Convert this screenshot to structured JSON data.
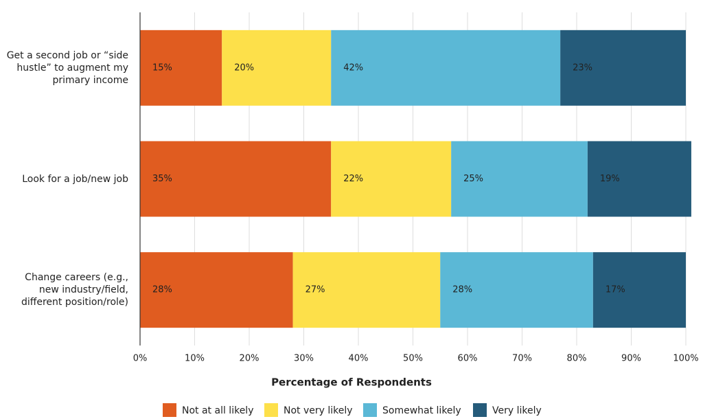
{
  "chart_data": {
    "type": "stacked-bar-horizontal",
    "categories": [
      "Get a second job or “side hustle” to augment my primary income",
      "Look for a job/new job",
      "Change careers (e.g., new industry/field, different position/role)"
    ],
    "series": [
      {
        "name": "Not at all likely",
        "color": "#e05c20",
        "values": [
          15,
          35,
          28
        ],
        "value_labels": [
          "15%",
          "35%",
          "28%"
        ]
      },
      {
        "name": "Not very likely",
        "color": "#fde04a",
        "values": [
          20,
          22,
          27
        ],
        "value_labels": [
          "20%",
          "22%",
          "27%"
        ]
      },
      {
        "name": "Somewhat likely",
        "color": "#5bb8d6",
        "values": [
          42,
          25,
          28
        ],
        "value_labels": [
          "42%",
          "25%",
          "28%"
        ]
      },
      {
        "name": "Very likely",
        "color": "#255b7a",
        "values": [
          23,
          19,
          17
        ],
        "value_labels": [
          "23%",
          "19%",
          "17%"
        ]
      }
    ],
    "x_label": "Percentage of Respondents",
    "xlim": [
      0,
      100
    ],
    "xticks": [
      {
        "value": 0,
        "label": "0%"
      },
      {
        "value": 10,
        "label": "10%"
      },
      {
        "value": 20,
        "label": "20%"
      },
      {
        "value": 30,
        "label": "30%"
      },
      {
        "value": 40,
        "label": "40%"
      },
      {
        "value": 50,
        "label": "50%"
      },
      {
        "value": 60,
        "label": "60%"
      },
      {
        "value": 70,
        "label": "70%"
      },
      {
        "value": 80,
        "label": "80%"
      },
      {
        "value": 90,
        "label": "90%"
      },
      {
        "value": 100,
        "label": "100%"
      }
    ],
    "grid": true,
    "legend": "bottom"
  }
}
